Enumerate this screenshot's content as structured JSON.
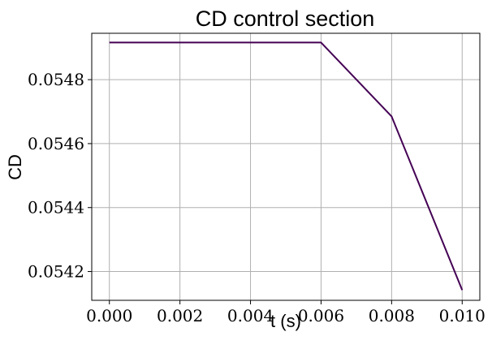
{
  "chart_data": {
    "type": "line",
    "title": "CD control section",
    "xlabel": "t (s)",
    "ylabel": "CD",
    "x": [
      0.0,
      0.002,
      0.004,
      0.006,
      0.008,
      0.01
    ],
    "series": [
      {
        "values": [
          0.054916,
          0.054916,
          0.054916,
          0.054916,
          0.054685,
          0.054142
        ]
      }
    ],
    "xlim": [
      -0.0005,
      0.0105
    ],
    "ylim": [
      0.05411,
      0.054945
    ],
    "x_ticks": [
      "0.000",
      "0.002",
      "0.004",
      "0.006",
      "0.008",
      "0.010"
    ],
    "y_ticks": [
      "0.0542",
      "0.0544",
      "0.0546",
      "0.0548"
    ],
    "grid": true,
    "colors": {
      "line": "#440154",
      "grid": "#b0b0b0"
    }
  }
}
